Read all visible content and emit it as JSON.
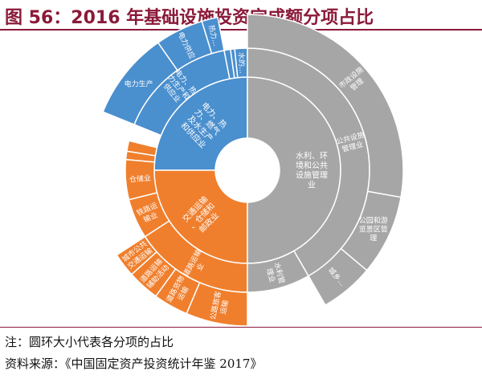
{
  "header": {
    "title": "图 56：2016 年基础设施投资完成额分项占比"
  },
  "footer": {
    "note": "注：圆环大小代表各分项的占比",
    "source": "资料来源：《中国固定资产投资统计年鉴 2017》"
  },
  "colors": {
    "power": "#4a8fce",
    "transport": "#f07f2d",
    "water": "#a6a6a6",
    "title": "#8b1a3a"
  },
  "chart_data": {
    "type": "sunburst",
    "title": "2016 年基础设施投资完成额分项占比",
    "inner": [
      {
        "label": "电力、热力、燃气及水生产和供应业",
        "group": "power",
        "start": 270,
        "end": 360
      },
      {
        "label": "交通运输、仓储和邮政业",
        "group": "transport",
        "start": 180,
        "end": 270
      },
      {
        "label": "水利、环境和公共设施管理业",
        "group": "water",
        "start": 0,
        "end": 180
      }
    ],
    "middle": [
      {
        "label": "电力、热力生产和供应业",
        "group": "power",
        "start": 292,
        "end": 349
      },
      {
        "label": "",
        "group": "power",
        "start": 349,
        "end": 352
      },
      {
        "label": "",
        "group": "power",
        "start": 352,
        "end": 354
      },
      {
        "label": "水的...",
        "group": "power",
        "start": 354,
        "end": 360
      },
      {
        "label": "",
        "group": "transport",
        "start": 275,
        "end": 279
      },
      {
        "label": "",
        "group": "transport",
        "start": 279,
        "end": 284
      },
      {
        "label": "仓储业",
        "group": "transport",
        "start": 256,
        "end": 275
      },
      {
        "label": "铁路运输业",
        "group": "transport",
        "start": 237,
        "end": 256
      },
      {
        "label": "道路运输业",
        "group": "transport",
        "start": 180,
        "end": 237
      },
      {
        "label": "水利管理业",
        "group": "water",
        "start": 150,
        "end": 180
      },
      {
        "label": "公共设施管理业",
        "group": "water",
        "start": 0,
        "end": 150
      }
    ],
    "outer": [
      {
        "label": "电力生产",
        "group": "power",
        "start": 292,
        "end": 325
      },
      {
        "label": "电力供应",
        "group": "power",
        "start": 325,
        "end": 343
      },
      {
        "label": "热力...",
        "group": "power",
        "start": 343,
        "end": 349
      },
      {
        "label": "城市公共交通运输",
        "group": "transport",
        "start": 228,
        "end": 237
      },
      {
        "label": "道路运输辅助活动",
        "group": "transport",
        "start": 216,
        "end": 228
      },
      {
        "label": "道路货物运输",
        "group": "transport",
        "start": 203,
        "end": 216
      },
      {
        "label": "公路旅客运输",
        "group": "transport",
        "start": 180,
        "end": 203
      },
      {
        "label": "市政设施管理",
        "group": "water",
        "start": 0,
        "end": 100
      },
      {
        "label": "公园和游览景区管理",
        "group": "water",
        "start": 100,
        "end": 130
      },
      {
        "label": "城乡...",
        "group": "water",
        "start": 130,
        "end": 150
      }
    ]
  },
  "labels": [
    {
      "text": "水利、环",
      "a": 79,
      "r": 0.78
    },
    {
      "text": "境和公共",
      "a": 79,
      "r": 0.78
    },
    {
      "text": "设施管理",
      "a": 79,
      "r": 0.78
    },
    {
      "text": "业",
      "a": 79,
      "r": 0.78
    }
  ]
}
